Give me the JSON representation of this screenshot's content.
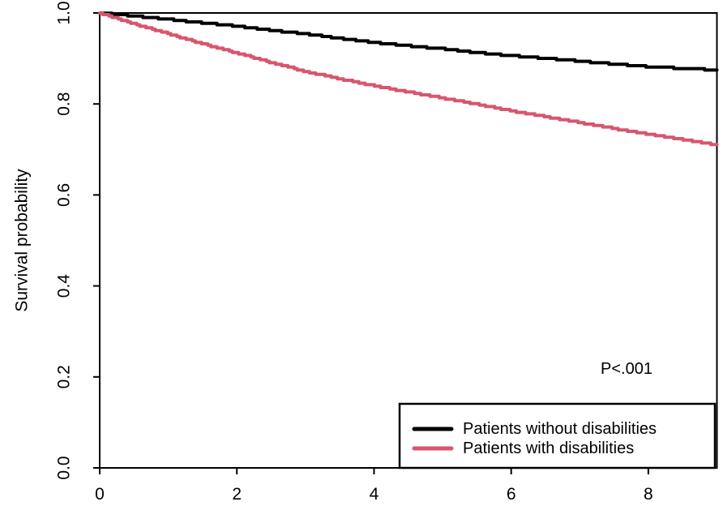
{
  "chart_data": {
    "type": "line",
    "subtype": "kaplan-meier-survival-curves",
    "title": "",
    "xlabel": "",
    "ylabel": "Survival probability",
    "xlim": [
      0,
      9
    ],
    "ylim": [
      0.0,
      1.0
    ],
    "grid": false,
    "box_around_plot": true,
    "x_ticks": {
      "values": [
        0,
        2,
        4,
        6,
        8
      ],
      "labels": [
        "0",
        "2",
        "4",
        "6",
        "8"
      ]
    },
    "y_ticks": {
      "values": [
        1.0,
        0.8,
        0.6,
        0.4,
        0.2,
        0.0
      ],
      "labels": [
        "1.0",
        "0.8",
        "0.6",
        "0.4",
        "0.2",
        "0.0"
      ]
    },
    "x": [
      0,
      0.5,
      1,
      1.5,
      2,
      2.5,
      3,
      3.5,
      4,
      4.5,
      5,
      5.5,
      6,
      6.5,
      7,
      7.5,
      8,
      8.5,
      9
    ],
    "series": [
      {
        "name": "Patients without disabilities",
        "color": "#000000",
        "values": [
          1.0,
          0.993,
          0.986,
          0.978,
          0.971,
          0.962,
          0.954,
          0.944,
          0.935,
          0.928,
          0.921,
          0.913,
          0.906,
          0.9,
          0.894,
          0.888,
          0.882,
          0.878,
          0.875
        ]
      },
      {
        "name": "Patients with disabilities",
        "color": "#D8566D",
        "values": [
          1.0,
          0.976,
          0.954,
          0.932,
          0.912,
          0.891,
          0.871,
          0.855,
          0.84,
          0.826,
          0.813,
          0.799,
          0.785,
          0.772,
          0.759,
          0.746,
          0.733,
          0.722,
          0.71
        ]
      }
    ],
    "annotation": {
      "text": "P<.001",
      "x_data": 7.7,
      "y_data": 0.217
    },
    "legend": {
      "position": "bottom-right-inside"
    },
    "axis_color": "#000000",
    "background": "#FFFFFF"
  }
}
